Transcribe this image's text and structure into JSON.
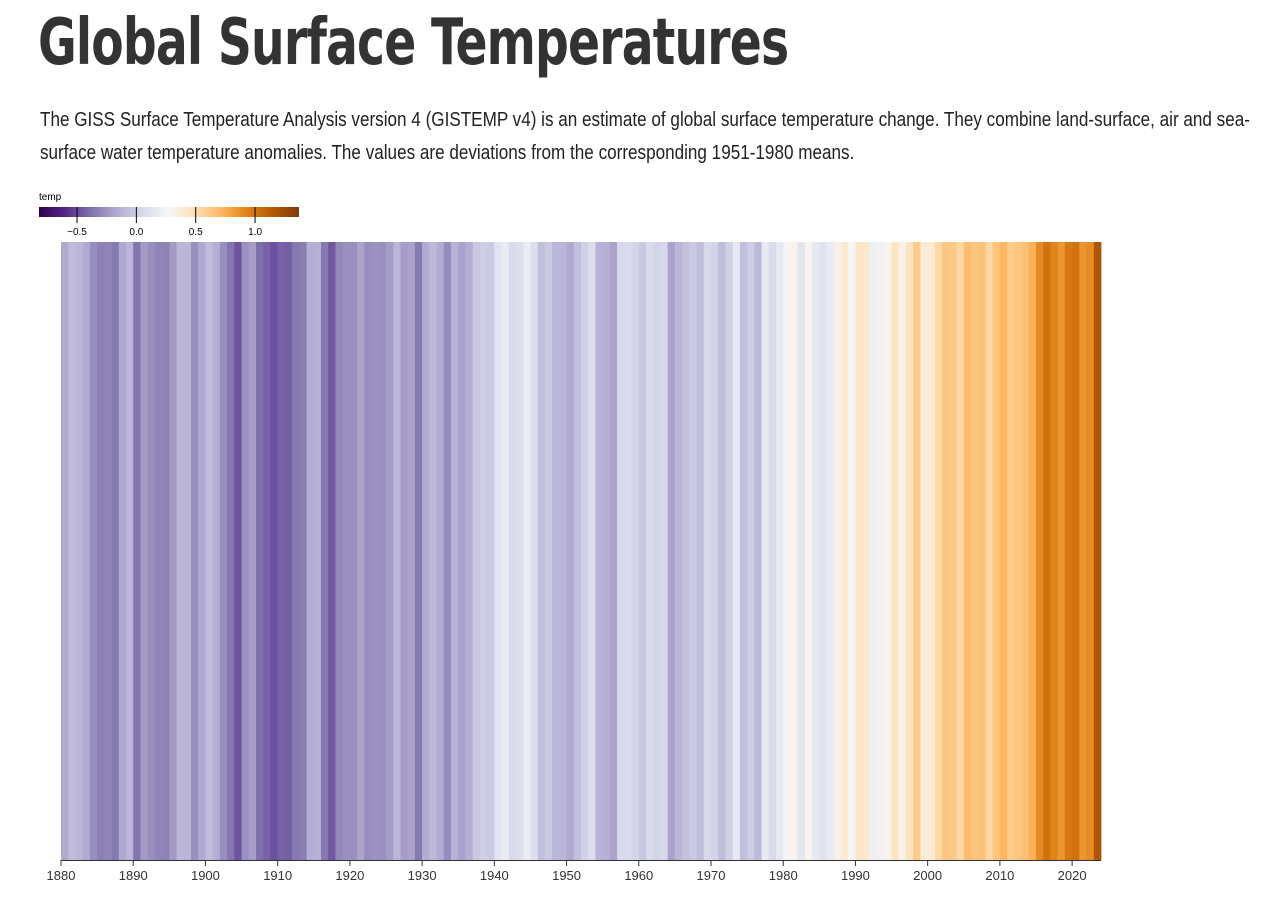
{
  "header": {
    "title": "Global Surface Temperatures",
    "description": "The GISS Surface Temperature Analysis version 4 (GISTEMP v4) is an estimate of global surface temperature change. They combine land-surface, air and sea-surface water temperature anomalies. The values are deviations from the corresponding 1951-1980 means."
  },
  "legend": {
    "title": "temp",
    "ticks": [
      -0.5,
      0.0,
      0.5,
      1.0
    ],
    "tick_labels": [
      "−0.5",
      "0.0",
      "0.5",
      "1.0"
    ],
    "domain": [
      -0.82,
      1.37
    ]
  },
  "colors": {
    "scheme": [
      "#2d004b",
      "#542788",
      "#8073ac",
      "#b2abd2",
      "#d8daeb",
      "#f7f7f7",
      "#fee0b6",
      "#fdb863",
      "#e08214",
      "#b35806",
      "#7f3b08"
    ],
    "axis": "#333333"
  },
  "chart_data": {
    "type": "heatmap",
    "title": "Global Surface Temperatures",
    "xlabel": "",
    "ylabel": "",
    "x_ticks": [
      1880,
      1890,
      1900,
      1910,
      1920,
      1930,
      1940,
      1950,
      1960,
      1970,
      1980,
      1990,
      2000,
      2010,
      2020
    ],
    "years": [
      1880,
      1881,
      1882,
      1883,
      1884,
      1885,
      1886,
      1887,
      1888,
      1889,
      1890,
      1891,
      1892,
      1893,
      1894,
      1895,
      1896,
      1897,
      1898,
      1899,
      1900,
      1901,
      1902,
      1903,
      1904,
      1905,
      1906,
      1907,
      1908,
      1909,
      1910,
      1911,
      1912,
      1913,
      1914,
      1915,
      1916,
      1917,
      1918,
      1919,
      1920,
      1921,
      1922,
      1923,
      1924,
      1925,
      1926,
      1927,
      1928,
      1929,
      1930,
      1931,
      1932,
      1933,
      1934,
      1935,
      1936,
      1937,
      1938,
      1939,
      1940,
      1941,
      1942,
      1943,
      1944,
      1945,
      1946,
      1947,
      1948,
      1949,
      1950,
      1951,
      1952,
      1953,
      1954,
      1955,
      1956,
      1957,
      1958,
      1959,
      1960,
      1961,
      1962,
      1963,
      1964,
      1965,
      1966,
      1967,
      1968,
      1969,
      1970,
      1971,
      1972,
      1973,
      1974,
      1975,
      1976,
      1977,
      1978,
      1979,
      1980,
      1981,
      1982,
      1983,
      1984,
      1985,
      1986,
      1987,
      1988,
      1989,
      1990,
      1991,
      1992,
      1993,
      1994,
      1995,
      1996,
      1997,
      1998,
      1999,
      2000,
      2001,
      2002,
      2003,
      2004,
      2005,
      2006,
      2007,
      2008,
      2009,
      2010,
      2011,
      2012,
      2013,
      2014,
      2015,
      2016,
      2017,
      2018,
      2019,
      2020,
      2021,
      2022,
      2023
    ],
    "values": [
      -0.17,
      -0.09,
      -0.11,
      -0.17,
      -0.28,
      -0.33,
      -0.31,
      -0.36,
      -0.18,
      -0.11,
      -0.37,
      -0.23,
      -0.28,
      -0.31,
      -0.32,
      -0.23,
      -0.11,
      -0.11,
      -0.27,
      -0.17,
      -0.08,
      -0.15,
      -0.28,
      -0.37,
      -0.47,
      -0.26,
      -0.22,
      -0.39,
      -0.43,
      -0.48,
      -0.43,
      -0.44,
      -0.36,
      -0.34,
      -0.15,
      -0.14,
      -0.36,
      -0.46,
      -0.3,
      -0.27,
      -0.27,
      -0.19,
      -0.28,
      -0.26,
      -0.27,
      -0.22,
      -0.11,
      -0.22,
      -0.2,
      -0.36,
      -0.16,
      -0.1,
      -0.16,
      -0.29,
      -0.13,
      -0.2,
      -0.15,
      -0.03,
      -0.0,
      -0.02,
      0.13,
      0.19,
      0.07,
      0.09,
      0.2,
      0.09,
      -0.07,
      -0.03,
      -0.11,
      -0.11,
      -0.17,
      -0.07,
      0.01,
      0.08,
      -0.13,
      -0.14,
      -0.19,
      0.05,
      0.06,
      0.03,
      -0.03,
      0.06,
      0.03,
      0.05,
      -0.2,
      -0.11,
      -0.06,
      -0.02,
      -0.08,
      0.05,
      0.03,
      -0.08,
      0.01,
      0.16,
      -0.07,
      -0.01,
      -0.1,
      0.18,
      0.07,
      0.16,
      0.26,
      0.32,
      0.14,
      0.31,
      0.16,
      0.12,
      0.18,
      0.33,
      0.4,
      0.28,
      0.44,
      0.41,
      0.22,
      0.24,
      0.31,
      0.45,
      0.33,
      0.46,
      0.61,
      0.38,
      0.39,
      0.54,
      0.63,
      0.62,
      0.54,
      0.68,
      0.64,
      0.66,
      0.54,
      0.65,
      0.72,
      0.61,
      0.64,
      0.67,
      0.74,
      0.9,
      1.01,
      0.92,
      0.85,
      0.98,
      1.02,
      0.85,
      0.89,
      1.17
    ],
    "x_domain": [
      1880,
      2024
    ],
    "legend_title": "temp"
  }
}
